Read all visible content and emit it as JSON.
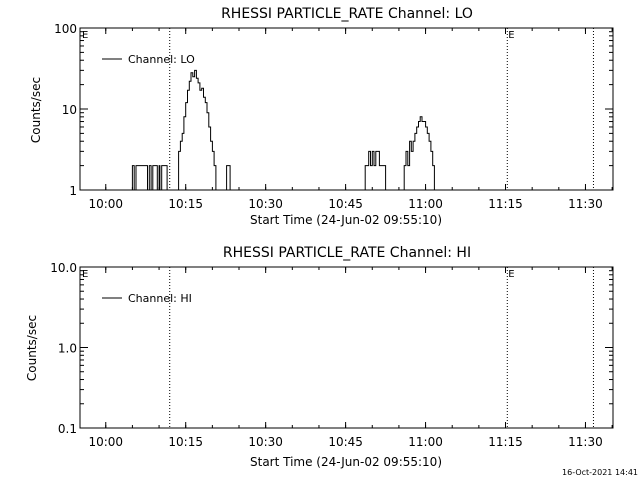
{
  "footer": {
    "timestamp": "16-Oct-2021 14:41"
  },
  "chart_data": [
    {
      "type": "line",
      "title": "RHESSI PARTICLE_RATE Channel: LO",
      "xlabel": "Start Time (24-Jun-02 09:55:10)",
      "ylabel": "Counts/sec",
      "yscale": "log",
      "ylim": [
        1,
        100
      ],
      "xlim": [
        "09:55:10",
        "11:35:10"
      ],
      "x_ticks": [
        "10:00",
        "10:15",
        "10:30",
        "10:45",
        "11:00",
        "11:15",
        "11:30"
      ],
      "y_ticks": [
        "1",
        "10",
        "100"
      ],
      "legend": {
        "position": "top-left",
        "entries": [
          "Channel: LO"
        ]
      },
      "markers": [
        {
          "time": "10:12:00",
          "label": ""
        },
        {
          "time": "11:15:20",
          "label": "E"
        },
        {
          "time": "11:31:30",
          "label": ""
        }
      ],
      "corner_label": "E",
      "series": [
        {
          "name": "Channel: LO",
          "segments": [
            [
              [
                "10:04:50",
                1
              ],
              [
                "10:05:00",
                2
              ],
              [
                "10:05:20",
                1
              ],
              [
                "10:05:40",
                2
              ],
              [
                "10:07:40",
                2
              ],
              [
                "10:07:50",
                1
              ],
              [
                "10:08:10",
                2
              ],
              [
                "10:08:30",
                1
              ],
              [
                "10:08:50",
                2
              ],
              [
                "10:09:30",
                2
              ],
              [
                "10:09:40",
                1
              ],
              [
                "10:10:00",
                2
              ],
              [
                "10:10:10",
                1
              ],
              [
                "10:10:30",
                2
              ],
              [
                "10:11:20",
                2
              ],
              [
                "10:11:30",
                1
              ]
            ],
            [
              [
                "10:13:20",
                1
              ],
              [
                "10:13:40",
                3
              ],
              [
                "10:14:00",
                4
              ],
              [
                "10:14:20",
                5
              ],
              [
                "10:14:40",
                8
              ],
              [
                "10:15:00",
                12
              ],
              [
                "10:15:20",
                17
              ],
              [
                "10:15:40",
                22
              ],
              [
                "10:16:00",
                28
              ],
              [
                "10:16:20",
                25
              ],
              [
                "10:16:40",
                30
              ],
              [
                "10:17:00",
                24
              ],
              [
                "10:17:20",
                21
              ],
              [
                "10:17:40",
                17
              ],
              [
                "10:18:00",
                18
              ],
              [
                "10:18:20",
                14
              ],
              [
                "10:18:40",
                12
              ],
              [
                "10:19:00",
                9
              ],
              [
                "10:19:20",
                6
              ],
              [
                "10:19:40",
                4
              ],
              [
                "10:20:00",
                3
              ],
              [
                "10:20:20",
                2
              ],
              [
                "10:20:40",
                1
              ]
            ],
            [
              [
                "10:22:30",
                1
              ],
              [
                "10:22:40",
                2
              ],
              [
                "10:23:10",
                2
              ],
              [
                "10:23:20",
                1
              ]
            ],
            [
              [
                "10:48:20",
                1
              ],
              [
                "10:48:40",
                2
              ],
              [
                "10:49:00",
                2
              ],
              [
                "10:49:20",
                3
              ],
              [
                "10:49:40",
                2
              ],
              [
                "10:50:00",
                3
              ],
              [
                "10:50:20",
                2
              ],
              [
                "10:50:40",
                3
              ],
              [
                "10:51:00",
                3
              ],
              [
                "10:51:20",
                2
              ],
              [
                "10:52:00",
                2
              ],
              [
                "10:52:30",
                1
              ]
            ],
            [
              [
                "10:55:40",
                1
              ],
              [
                "10:56:00",
                2
              ],
              [
                "10:56:20",
                3
              ],
              [
                "10:56:40",
                2
              ],
              [
                "10:57:00",
                4
              ],
              [
                "10:57:20",
                3
              ],
              [
                "10:57:40",
                4
              ],
              [
                "10:58:00",
                5
              ],
              [
                "10:58:20",
                6
              ],
              [
                "10:58:40",
                7
              ],
              [
                "10:59:00",
                8
              ],
              [
                "10:59:20",
                7
              ],
              [
                "10:59:40",
                7
              ],
              [
                "11:00:00",
                6
              ],
              [
                "11:00:20",
                5
              ],
              [
                "11:00:40",
                4
              ],
              [
                "11:01:00",
                3
              ],
              [
                "11:01:20",
                2
              ],
              [
                "11:01:40",
                1
              ]
            ]
          ]
        }
      ]
    },
    {
      "type": "line",
      "title": "RHESSI PARTICLE_RATE Channel: HI",
      "xlabel": "Start Time (24-Jun-02 09:55:10)",
      "ylabel": "Counts/sec",
      "yscale": "log",
      "ylim": [
        0.1,
        10
      ],
      "xlim": [
        "09:55:10",
        "11:35:10"
      ],
      "x_ticks": [
        "10:00",
        "10:15",
        "10:30",
        "10:45",
        "11:00",
        "11:15",
        "11:30"
      ],
      "y_ticks": [
        "0.1",
        "1.0",
        "10.0"
      ],
      "legend": {
        "position": "top-left",
        "entries": [
          "Channel: HI"
        ]
      },
      "markers": [
        {
          "time": "10:12:00",
          "label": ""
        },
        {
          "time": "11:15:20",
          "label": "E"
        },
        {
          "time": "11:31:30",
          "label": ""
        }
      ],
      "corner_label": "E",
      "series": [
        {
          "name": "Channel: HI",
          "segments": []
        }
      ]
    }
  ]
}
